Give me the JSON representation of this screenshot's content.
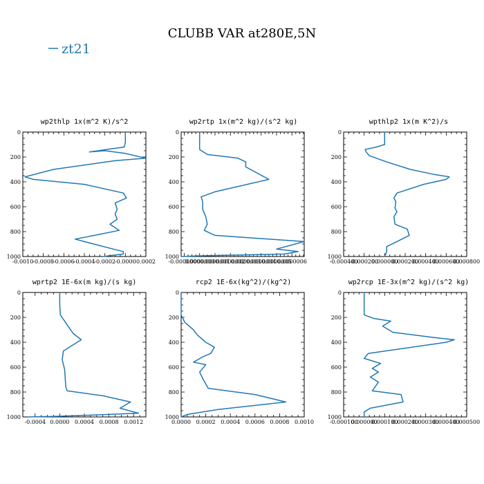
{
  "figure_title": "CLUBB VAR at280E,5N",
  "legend": {
    "label": "zt21",
    "color": "#1f77b4"
  },
  "chart_data": [
    {
      "type": "line",
      "title": "wp2thlp  1x(m^2 K)/s^2",
      "xlim": [
        -0.001,
        0.0002
      ],
      "ylim": [
        1000,
        0
      ],
      "xticks": [
        "-0.0010",
        "-0.0008",
        "-0.0006",
        "-0.0004",
        "-0.0002",
        "-0.0000",
        "0.0002"
      ],
      "xtick_values": [
        -0.001,
        -0.0008,
        -0.0006,
        -0.0004,
        -0.0002,
        0,
        0.0002
      ],
      "yticks": [
        "0",
        "200",
        "400",
        "600",
        "800",
        "1000"
      ],
      "ytick_values": [
        0,
        200,
        400,
        600,
        800,
        1000
      ],
      "series": [
        {
          "x": [
            0,
            0,
            -1e-05,
            -0.00035,
            -0.0002,
            -1e-05,
            0.0002,
            -0.0001,
            -0.0007,
            -0.00098,
            -0.0009,
            -0.0004,
            -2e-05,
            1e-05,
            -0.0001,
            -8e-05,
            -0.0001,
            -8e-05,
            -0.00015,
            -6e-05,
            -0.0003,
            -0.00049,
            -0.0004,
            -0.00012,
            -2e-05,
            -2e-05,
            -0.00022
          ],
          "y": [
            0,
            80,
            120,
            160,
            150,
            170,
            210,
            230,
            300,
            360,
            380,
            420,
            490,
            530,
            570,
            620,
            660,
            700,
            740,
            790,
            830,
            860,
            880,
            940,
            960,
            980,
            1000
          ]
        }
      ]
    },
    {
      "type": "line",
      "title": "wp2rtp  1x(m^2 kg)/(s^2 kg)",
      "xlim": [
        -1.2e-07,
        6.8e-07
      ],
      "ylim": [
        1000,
        0
      ],
      "xticks": [
        "-0.0000000",
        "0.0000000",
        "0.0000001",
        "0.0000002",
        "0.0000003",
        "0.0000004",
        "0.0000005",
        "0.0000006"
      ],
      "xtick_values": [
        -1e-07,
        0,
        1e-07,
        2e-07,
        3e-07,
        4e-07,
        5e-07,
        6e-07
      ],
      "yticks": [
        "0",
        "200",
        "400",
        "600",
        "800",
        "1000"
      ],
      "ytick_values": [
        0,
        200,
        400,
        600,
        800,
        1000
      ],
      "series": [
        {
          "x": [
            0,
            0,
            5e-08,
            2.5e-07,
            3e-07,
            3e-07,
            4.5e-07,
            1e-07,
            1e-08,
            2e-08,
            2e-08,
            4e-08,
            5e-08,
            3e-08,
            1e-07,
            6.8e-07,
            5e-07,
            6.4e-07,
            5.5e-07,
            -2e-08,
            -1.2e-07
          ],
          "y": [
            0,
            140,
            180,
            210,
            240,
            280,
            380,
            480,
            520,
            560,
            620,
            680,
            740,
            790,
            830,
            880,
            940,
            960,
            980,
            995,
            1000
          ]
        }
      ]
    },
    {
      "type": "line",
      "title": "wpthlp2  1x(m K^2)/s",
      "xlim": [
        -0.0004,
        0.0008
      ],
      "ylim": [
        1000,
        0
      ],
      "xticks": [
        "-0.000400",
        "-0.000200",
        "0.000000",
        "0.000200",
        "0.000400",
        "0.000600",
        "0.000800"
      ],
      "xtick_values": [
        -0.0004,
        -0.0002,
        0,
        0.0002,
        0.0004,
        0.0006,
        0.0008
      ],
      "yticks": [
        "0",
        "200",
        "400",
        "600",
        "800",
        "1000"
      ],
      "ytick_values": [
        0,
        200,
        400,
        600,
        800,
        1000
      ],
      "series": [
        {
          "x": [
            0,
            0,
            -8e-05,
            -0.00019,
            -0.00018,
            -0.00015,
            2e-05,
            0.00025,
            0.00048,
            0.00063,
            0.0006,
            0.00038,
            0.00012,
            9e-05,
            0.00011,
            0.0001,
            0.00012,
            9e-05,
            0.0001,
            0.00022,
            0.00024,
            0.00012,
            2e-05,
            2e-05,
            0
          ],
          "y": [
            0,
            100,
            120,
            140,
            160,
            190,
            240,
            300,
            340,
            360,
            380,
            420,
            490,
            530,
            560,
            610,
            640,
            680,
            740,
            780,
            830,
            880,
            920,
            960,
            1000
          ]
        }
      ]
    },
    {
      "type": "line",
      "title": "wprtp2  1E-6x(m kg)/(s kg)",
      "xlim": [
        -0.0006,
        0.0014
      ],
      "ylim": [
        1000,
        0
      ],
      "xticks": [
        "-0.0004",
        "0.0000",
        "0.0004",
        "0.0008",
        "0.0012"
      ],
      "xtick_values": [
        -0.0004,
        0,
        0.0004,
        0.0008,
        0.0012
      ],
      "yticks": [
        "0",
        "200",
        "400",
        "600",
        "800",
        "1000"
      ],
      "ytick_values": [
        0,
        200,
        400,
        600,
        800,
        1000
      ],
      "series": [
        {
          "x": [
            0,
            0,
            1e-05,
            0.00012,
            0.00022,
            0.00035,
            0.00022,
            6e-05,
            4e-05,
            8e-05,
            9e-05,
            0.0001,
            0.00012,
            0.0007,
            0.00115,
            0.00098,
            0.00128,
            0.00055,
            -5e-05,
            -0.00052
          ],
          "y": [
            0,
            100,
            180,
            260,
            330,
            380,
            420,
            470,
            540,
            620,
            700,
            760,
            790,
            830,
            880,
            930,
            970,
            985,
            995,
            1000
          ]
        }
      ]
    },
    {
      "type": "line",
      "title": "rcp2  1E-6x(kg^2)/(kg^2)",
      "xlim": [
        0,
        0.001
      ],
      "ylim": [
        1000,
        0
      ],
      "xticks": [
        "0.0000",
        "0.0002",
        "0.0004",
        "0.0006",
        "0.0008",
        "0.0010"
      ],
      "xtick_values": [
        0,
        0.0002,
        0.0004,
        0.0006,
        0.0008,
        0.001
      ],
      "yticks": [
        "0",
        "200",
        "400",
        "600",
        "800",
        "1000"
      ],
      "ytick_values": [
        0,
        200,
        400,
        600,
        800,
        1000
      ],
      "series": [
        {
          "x": [
            0,
            0,
            3e-05,
            0.0001,
            0.00013,
            0.0002,
            0.00027,
            0.00024,
            0.00017,
            0.0001,
            0.0002,
            0.00015,
            0.00018,
            0.00022,
            0.0006,
            0.00085,
            0.0003,
            5e-05,
            0
          ],
          "y": [
            0,
            180,
            240,
            300,
            340,
            400,
            440,
            490,
            520,
            560,
            580,
            640,
            700,
            770,
            820,
            880,
            940,
            980,
            1000
          ]
        }
      ]
    },
    {
      "type": "line",
      "title": "wp2rcp  1E-3x(m^2 kg)/(s^2 kg)",
      "xlim": [
        -0.0001,
        0.0005
      ],
      "ylim": [
        1000,
        0
      ],
      "xticks": [
        "-0.000100",
        "0.000000",
        "0.000100",
        "0.000200",
        "0.000300",
        "0.000400",
        "0.000500"
      ],
      "xtick_values": [
        -0.0001,
        0,
        0.0001,
        0.0002,
        0.0003,
        0.0004,
        0.0005
      ],
      "yticks": [
        "0",
        "200",
        "400",
        "600",
        "800",
        "1000"
      ],
      "ytick_values": [
        0,
        200,
        400,
        600,
        800,
        1000
      ],
      "series": [
        {
          "x": [
            0,
            0,
            5e-05,
            0.00013,
            9e-05,
            0.00014,
            0.00033,
            0.00044,
            0.0004,
            2e-05,
            0,
            8e-05,
            4e-05,
            7e-05,
            3e-05,
            7e-05,
            4e-05,
            0.00018,
            0.00019,
            3e-05,
            0,
            0
          ],
          "y": [
            0,
            180,
            210,
            230,
            270,
            320,
            360,
            380,
            400,
            490,
            530,
            570,
            610,
            640,
            680,
            720,
            790,
            820,
            880,
            930,
            960,
            1000
          ]
        }
      ]
    }
  ]
}
